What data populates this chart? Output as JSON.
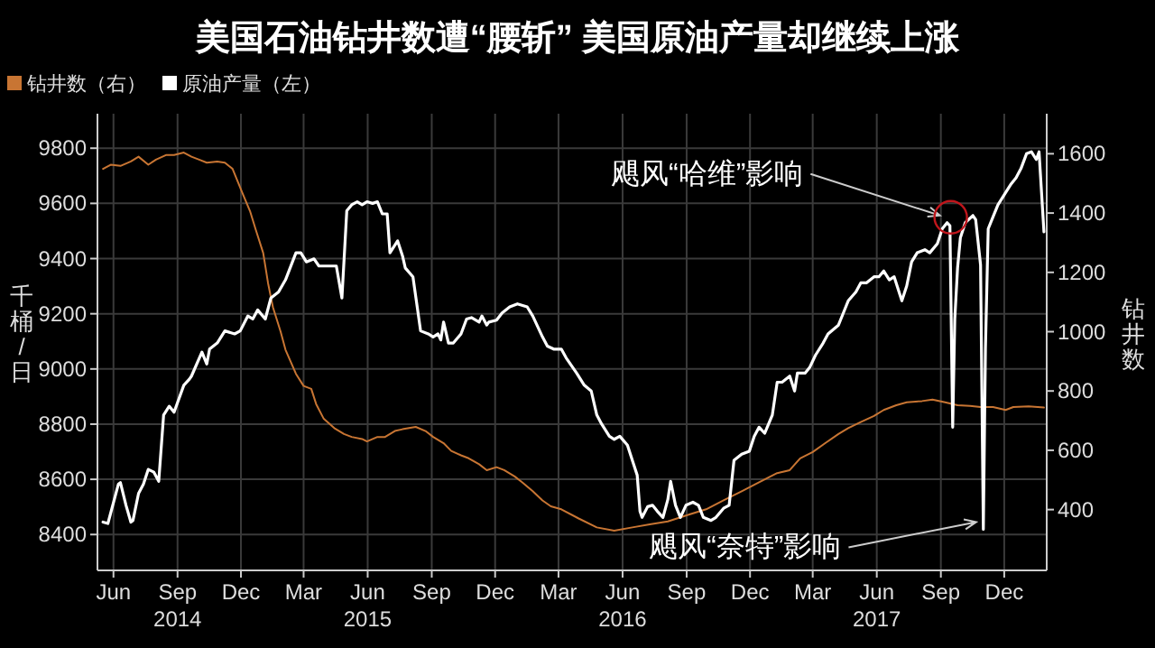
{
  "chart_data": {
    "type": "line",
    "title": "美国石油钻井数遭“腰斩” 美国原油产量却继续上涨",
    "ylabel": "千桶/日",
    "y2label": "钻井数",
    "legend": "top left",
    "grid": true,
    "xlim": [
      "2014-05-23",
      "2018-02-14"
    ],
    "xticks": [
      {
        "value": "2014-06-15",
        "label": "Jun"
      },
      {
        "value": "2014-09-15",
        "label": "Sep\n2014"
      },
      {
        "value": "2014-12-15",
        "label": "Dec"
      },
      {
        "value": "2015-03-15",
        "label": "Mar"
      },
      {
        "value": "2015-06-15",
        "label": "Jun\n2015"
      },
      {
        "value": "2015-09-15",
        "label": "Sep"
      },
      {
        "value": "2015-12-15",
        "label": "Dec"
      },
      {
        "value": "2016-03-15",
        "label": "Mar"
      },
      {
        "value": "2016-06-15",
        "label": "Jun\n2016"
      },
      {
        "value": "2016-09-15",
        "label": "Sep"
      },
      {
        "value": "2016-12-15",
        "label": "Dec"
      },
      {
        "value": "2017-03-15",
        "label": "Mar"
      },
      {
        "value": "2017-06-15",
        "label": "Jun\n2017"
      },
      {
        "value": "2017-09-15",
        "label": "Sep"
      },
      {
        "value": "2017-12-15",
        "label": "Dec"
      }
    ],
    "ylim": [
      8270,
      9925
    ],
    "yticks": [
      8400,
      8600,
      8800,
      9000,
      9200,
      9400,
      9600,
      9800
    ],
    "y2lim": [
      195,
      1735
    ],
    "y2ticks": [
      400,
      600,
      800,
      1000,
      1200,
      1400,
      1600
    ],
    "series": [
      {
        "name": "钻井数（右）",
        "color": "#c87533",
        "axis": "y2",
        "x": [
          "2014-05-31",
          "2014-06-11",
          "2014-06-25",
          "2014-07-10",
          "2014-07-21",
          "2014-08-04",
          "2014-08-15",
          "2014-08-30",
          "2014-09-10",
          "2014-09-24",
          "2014-10-05",
          "2014-10-16",
          "2014-10-27",
          "2014-11-11",
          "2014-11-22",
          "2014-12-03",
          "2014-12-10",
          "2014-12-17",
          "2014-12-28",
          "2015-01-05",
          "2015-01-16",
          "2015-01-23",
          "2015-01-30",
          "2015-02-10",
          "2015-02-17",
          "2015-03-04",
          "2015-03-15",
          "2015-03-26",
          "2015-04-02",
          "2015-04-13",
          "2015-04-28",
          "2015-05-12",
          "2015-05-23",
          "2015-06-07",
          "2015-06-14",
          "2015-06-29",
          "2015-07-10",
          "2015-07-24",
          "2015-08-04",
          "2015-08-23",
          "2015-09-06",
          "2015-09-17",
          "2015-10-02",
          "2015-10-13",
          "2015-10-27",
          "2015-11-07",
          "2015-11-22",
          "2015-12-03",
          "2015-12-17",
          "2015-12-28",
          "2016-01-12",
          "2016-01-23",
          "2016-02-07",
          "2016-02-21",
          "2016-03-04",
          "2016-03-19",
          "2016-04-13",
          "2016-05-09",
          "2016-06-03",
          "2016-06-29",
          "2016-07-24",
          "2016-08-19",
          "2016-09-14",
          "2016-10-13",
          "2016-11-07",
          "2016-12-03",
          "2016-12-28",
          "2017-01-23",
          "2017-02-10",
          "2017-02-25",
          "2017-03-15",
          "2017-04-02",
          "2017-04-21",
          "2017-05-05",
          "2017-05-23",
          "2017-06-11",
          "2017-06-25",
          "2017-07-13",
          "2017-07-28",
          "2017-08-19",
          "2017-09-03",
          "2017-09-21",
          "2017-10-09",
          "2017-10-27",
          "2017-11-11",
          "2017-11-29",
          "2017-12-17",
          "2017-12-28",
          "2018-01-19",
          "2018-02-10"
        ],
        "values": [
          1549,
          1563,
          1559,
          1574,
          1590,
          1563,
          1580,
          1596,
          1596,
          1604,
          1590,
          1580,
          1570,
          1574,
          1570,
          1549,
          1509,
          1468,
          1407,
          1346,
          1265,
          1163,
          1082,
          1000,
          939,
          858,
          817,
          807,
          756,
          706,
          675,
          655,
          645,
          638,
          630,
          645,
          645,
          665,
          671,
          679,
          665,
          645,
          624,
          598,
          583,
          573,
          553,
          533,
          543,
          533,
          512,
          492,
          462,
          431,
          411,
          401,
          370,
          340,
          329,
          340,
          350,
          360,
          380,
          401,
          431,
          462,
          492,
          523,
          533,
          573,
          594,
          624,
          655,
          675,
          695,
          716,
          736,
          752,
          762,
          766,
          771,
          762,
          752,
          750,
          746,
          746,
          736,
          746,
          748,
          744
        ]
      },
      {
        "name": "原油产量（左）",
        "color": "#ffffff",
        "x": [
          "2014-05-31",
          "2014-06-07",
          "2014-06-22",
          "2014-06-25",
          "2014-07-03",
          "2014-07-10",
          "2014-07-13",
          "2014-07-21",
          "2014-07-28",
          "2014-08-04",
          "2014-08-12",
          "2014-08-19",
          "2014-08-26",
          "2014-09-03",
          "2014-09-10",
          "2014-09-24",
          "2014-10-02",
          "2014-10-05",
          "2014-10-20",
          "2014-10-27",
          "2014-10-31",
          "2014-11-11",
          "2014-11-22",
          "2014-12-06",
          "2014-12-14",
          "2014-12-25",
          "2015-01-01",
          "2015-01-08",
          "2015-01-19",
          "2015-01-27",
          "2015-02-07",
          "2015-02-17",
          "2015-03-04",
          "2015-03-11",
          "2015-03-19",
          "2015-03-30",
          "2015-04-06",
          "2015-04-21",
          "2015-05-01",
          "2015-05-09",
          "2015-05-16",
          "2015-05-23",
          "2015-05-31",
          "2015-06-07",
          "2015-06-14",
          "2015-06-22",
          "2015-06-29",
          "2015-07-06",
          "2015-07-13",
          "2015-07-17",
          "2015-07-28",
          "2015-08-04",
          "2015-08-08",
          "2015-08-19",
          "2015-08-30",
          "2015-09-10",
          "2015-09-17",
          "2015-09-24",
          "2015-09-28",
          "2015-10-02",
          "2015-10-09",
          "2015-10-16",
          "2015-10-27",
          "2015-11-04",
          "2015-11-11",
          "2015-11-22",
          "2015-11-26",
          "2015-12-03",
          "2015-12-06",
          "2015-12-17",
          "2015-12-25",
          "2016-01-05",
          "2016-01-16",
          "2016-01-30",
          "2016-02-07",
          "2016-02-21",
          "2016-02-28",
          "2016-03-08",
          "2016-03-19",
          "2016-03-26",
          "2016-04-10",
          "2016-04-21",
          "2016-05-01",
          "2016-05-09",
          "2016-05-16",
          "2016-05-27",
          "2016-06-03",
          "2016-06-11",
          "2016-06-22",
          "2016-06-29",
          "2016-07-06",
          "2016-07-10",
          "2016-07-13",
          "2016-07-21",
          "2016-07-28",
          "2016-08-04",
          "2016-08-12",
          "2016-08-19",
          "2016-08-23",
          "2016-08-30",
          "2016-09-06",
          "2016-09-14",
          "2016-09-24",
          "2016-10-02",
          "2016-10-09",
          "2016-10-20",
          "2016-10-27",
          "2016-11-07",
          "2016-11-15",
          "2016-11-22",
          "2016-12-03",
          "2016-12-14",
          "2016-12-21",
          "2016-12-28",
          "2017-01-05",
          "2017-01-16",
          "2017-01-23",
          "2017-01-30",
          "2017-02-10",
          "2017-02-17",
          "2017-02-21",
          "2017-03-04",
          "2017-03-11",
          "2017-03-19",
          "2017-03-30",
          "2017-04-06",
          "2017-04-21",
          "2017-04-28",
          "2017-05-05",
          "2017-05-16",
          "2017-05-23",
          "2017-05-31",
          "2017-06-11",
          "2017-06-18",
          "2017-06-25",
          "2017-07-03",
          "2017-07-10",
          "2017-07-21",
          "2017-07-28",
          "2017-08-04",
          "2017-08-12",
          "2017-08-23",
          "2017-08-30",
          "2017-09-10",
          "2017-09-17",
          "2017-09-24",
          "2017-09-28",
          "2017-10-02",
          "2017-10-05",
          "2017-10-09",
          "2017-10-13",
          "2017-10-20",
          "2017-10-31",
          "2017-11-04",
          "2017-11-11",
          "2017-11-15",
          "2017-11-18",
          "2017-11-22",
          "2017-11-29",
          "2017-12-06",
          "2017-12-17",
          "2017-12-25",
          "2018-01-01",
          "2018-01-08",
          "2018-01-16",
          "2018-01-23",
          "2018-01-30",
          "2018-02-03",
          "2018-02-10"
        ],
        "values": [
          8445,
          8440,
          8582,
          8588,
          8506,
          8445,
          8451,
          8549,
          8582,
          8636,
          8626,
          8593,
          8833,
          8865,
          8843,
          8941,
          8963,
          8974,
          9061,
          9018,
          9072,
          9094,
          9138,
          9127,
          9138,
          9192,
          9181,
          9214,
          9181,
          9257,
          9279,
          9323,
          9421,
          9421,
          9388,
          9399,
          9373,
          9373,
          9373,
          9257,
          9573,
          9595,
          9606,
          9595,
          9606,
          9600,
          9606,
          9562,
          9562,
          9421,
          9464,
          9410,
          9366,
          9334,
          9138,
          9127,
          9116,
          9127,
          9105,
          9170,
          9094,
          9094,
          9127,
          9181,
          9186,
          9170,
          9192,
          9159,
          9170,
          9177,
          9203,
          9225,
          9236,
          9225,
          9192,
          9116,
          9083,
          9072,
          9072,
          9040,
          8985,
          8941,
          8920,
          8833,
          8800,
          8756,
          8745,
          8756,
          8724,
          8669,
          8615,
          8484,
          8462,
          8501,
          8506,
          8484,
          8462,
          8527,
          8593,
          8506,
          8462,
          8506,
          8517,
          8506,
          8462,
          8451,
          8462,
          8495,
          8506,
          8669,
          8691,
          8702,
          8756,
          8789,
          8767,
          8833,
          8952,
          8952,
          8974,
          8920,
          8985,
          8985,
          9007,
          9050,
          9094,
          9127,
          9159,
          9203,
          9247,
          9279,
          9312,
          9312,
          9334,
          9334,
          9355,
          9323,
          9334,
          9247,
          9301,
          9388,
          9421,
          9432,
          9421,
          9454,
          9508,
          9530,
          9519,
          8789,
          9181,
          9366,
          9475,
          9530,
          9556,
          9541,
          9377,
          8419,
          9072,
          9508,
          9552,
          9595,
          9639,
          9671,
          9693,
          9726,
          9780,
          9787,
          9759,
          9787,
          9497
        ]
      }
    ],
    "annotations": [
      {
        "text": "飓风“哈维”影响",
        "x": "2017-09-24",
        "y": 9530
      },
      {
        "text": "飓风“奈特”影响",
        "x": "2017-11-15",
        "y": 8419
      }
    ]
  }
}
